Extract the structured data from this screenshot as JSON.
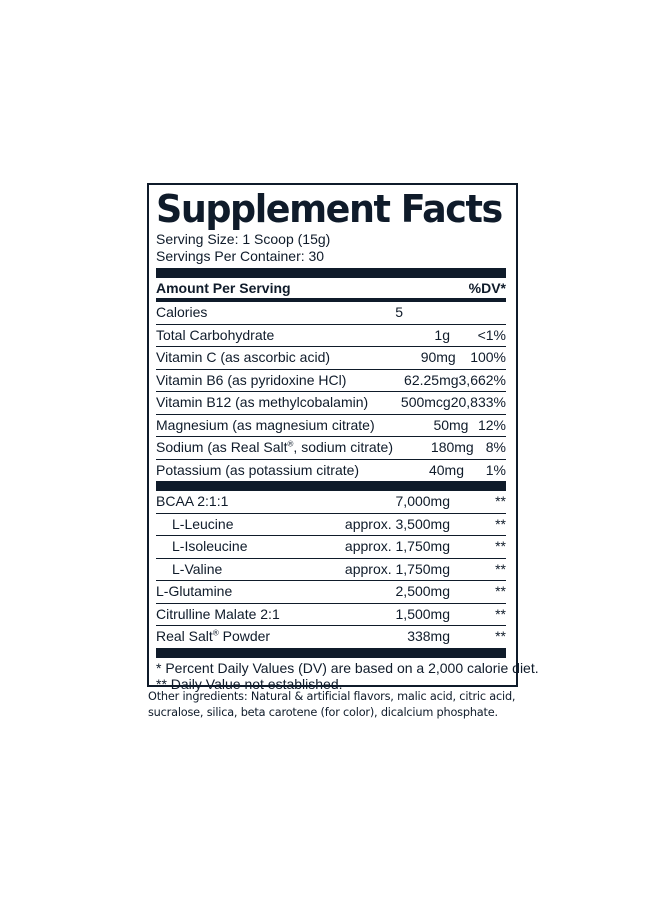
{
  "title": "Supplement Facts",
  "serving_size": "Serving Size: 1 Scoop (15g)",
  "servings_per_container": "Servings Per Container: 30",
  "header": {
    "amount": "Amount Per Serving",
    "dv": "%DV*"
  },
  "nutrients": [
    {
      "name": "Calories",
      "amount": "5",
      "dv": ""
    },
    {
      "name": "Total Carbohydrate",
      "amount": "1g",
      "dv": "<1%"
    },
    {
      "name": "Vitamin C (as ascorbic acid)",
      "amount": "90mg",
      "dv": "100%"
    },
    {
      "name": "Vitamin B6 (as pyridoxine HCl)",
      "amount": "62.25mg",
      "dv": "3,662%"
    },
    {
      "name": "Vitamin B12 (as methylcobalamin)",
      "amount": "500mcg",
      "dv": "20,833%"
    },
    {
      "name": "Magnesium (as magnesium citrate)",
      "amount": "50mg",
      "dv": "12%"
    },
    {
      "name_pre": "Sodium (as Real Salt",
      "reg": "®",
      "name_post": ", sodium citrate)",
      "amount": "180mg",
      "dv": "8%"
    },
    {
      "name": "Potassium (as potassium citrate)",
      "amount": "40mg",
      "dv": "1%"
    }
  ],
  "blend": [
    {
      "name": "BCAA 2:1:1",
      "amount": "7,000mg",
      "dv": "**"
    },
    {
      "name": "L-Leucine",
      "amount": "approx. 3,500mg",
      "dv": "**"
    },
    {
      "name": "L-Isoleucine",
      "amount": "approx. 1,750mg",
      "dv": "**"
    },
    {
      "name": "L-Valine",
      "amount": "approx. 1,750mg",
      "dv": "**"
    },
    {
      "name": "L-Glutamine",
      "amount": "2,500mg",
      "dv": "**"
    },
    {
      "name": "Citrulline Malate 2:1",
      "amount": "1,500mg",
      "dv": "**"
    },
    {
      "name_pre": "Real Salt",
      "reg": "®",
      "name_post": " Powder",
      "amount": "338mg",
      "dv": "**"
    }
  ],
  "footnotes": [
    "* Percent Daily Values (DV) are based on a 2,000 calorie diet.",
    "** Daily Value not established."
  ],
  "other_ingredients": "Other ingredients: Natural & artificial flavors, malic acid, citric acid, sucralose, silica, beta carotene (for color), dicalcium phosphate.",
  "colors": {
    "ink": "#0f1b2a",
    "background": "#ffffff"
  }
}
